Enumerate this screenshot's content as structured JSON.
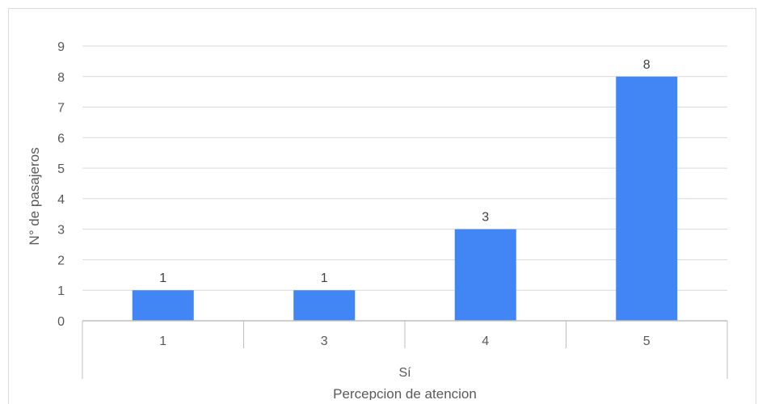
{
  "chart_data": {
    "type": "bar",
    "categories": [
      "1",
      "3",
      "4",
      "5"
    ],
    "group_label": "Sí",
    "values": [
      1,
      1,
      3,
      8
    ],
    "data_labels": [
      "1",
      "1",
      "3",
      "8"
    ],
    "xlabel": "Percepcion de atencion",
    "ylabel": "N° de pasajeros",
    "ylim": [
      0,
      9
    ],
    "yticks": [
      "0",
      "1",
      "2",
      "3",
      "4",
      "5",
      "6",
      "7",
      "8",
      "9"
    ],
    "grid": true,
    "bar_color": "#4285f4",
    "grid_color": "#d9d9d9",
    "axis_color": "#bfbfbf"
  }
}
